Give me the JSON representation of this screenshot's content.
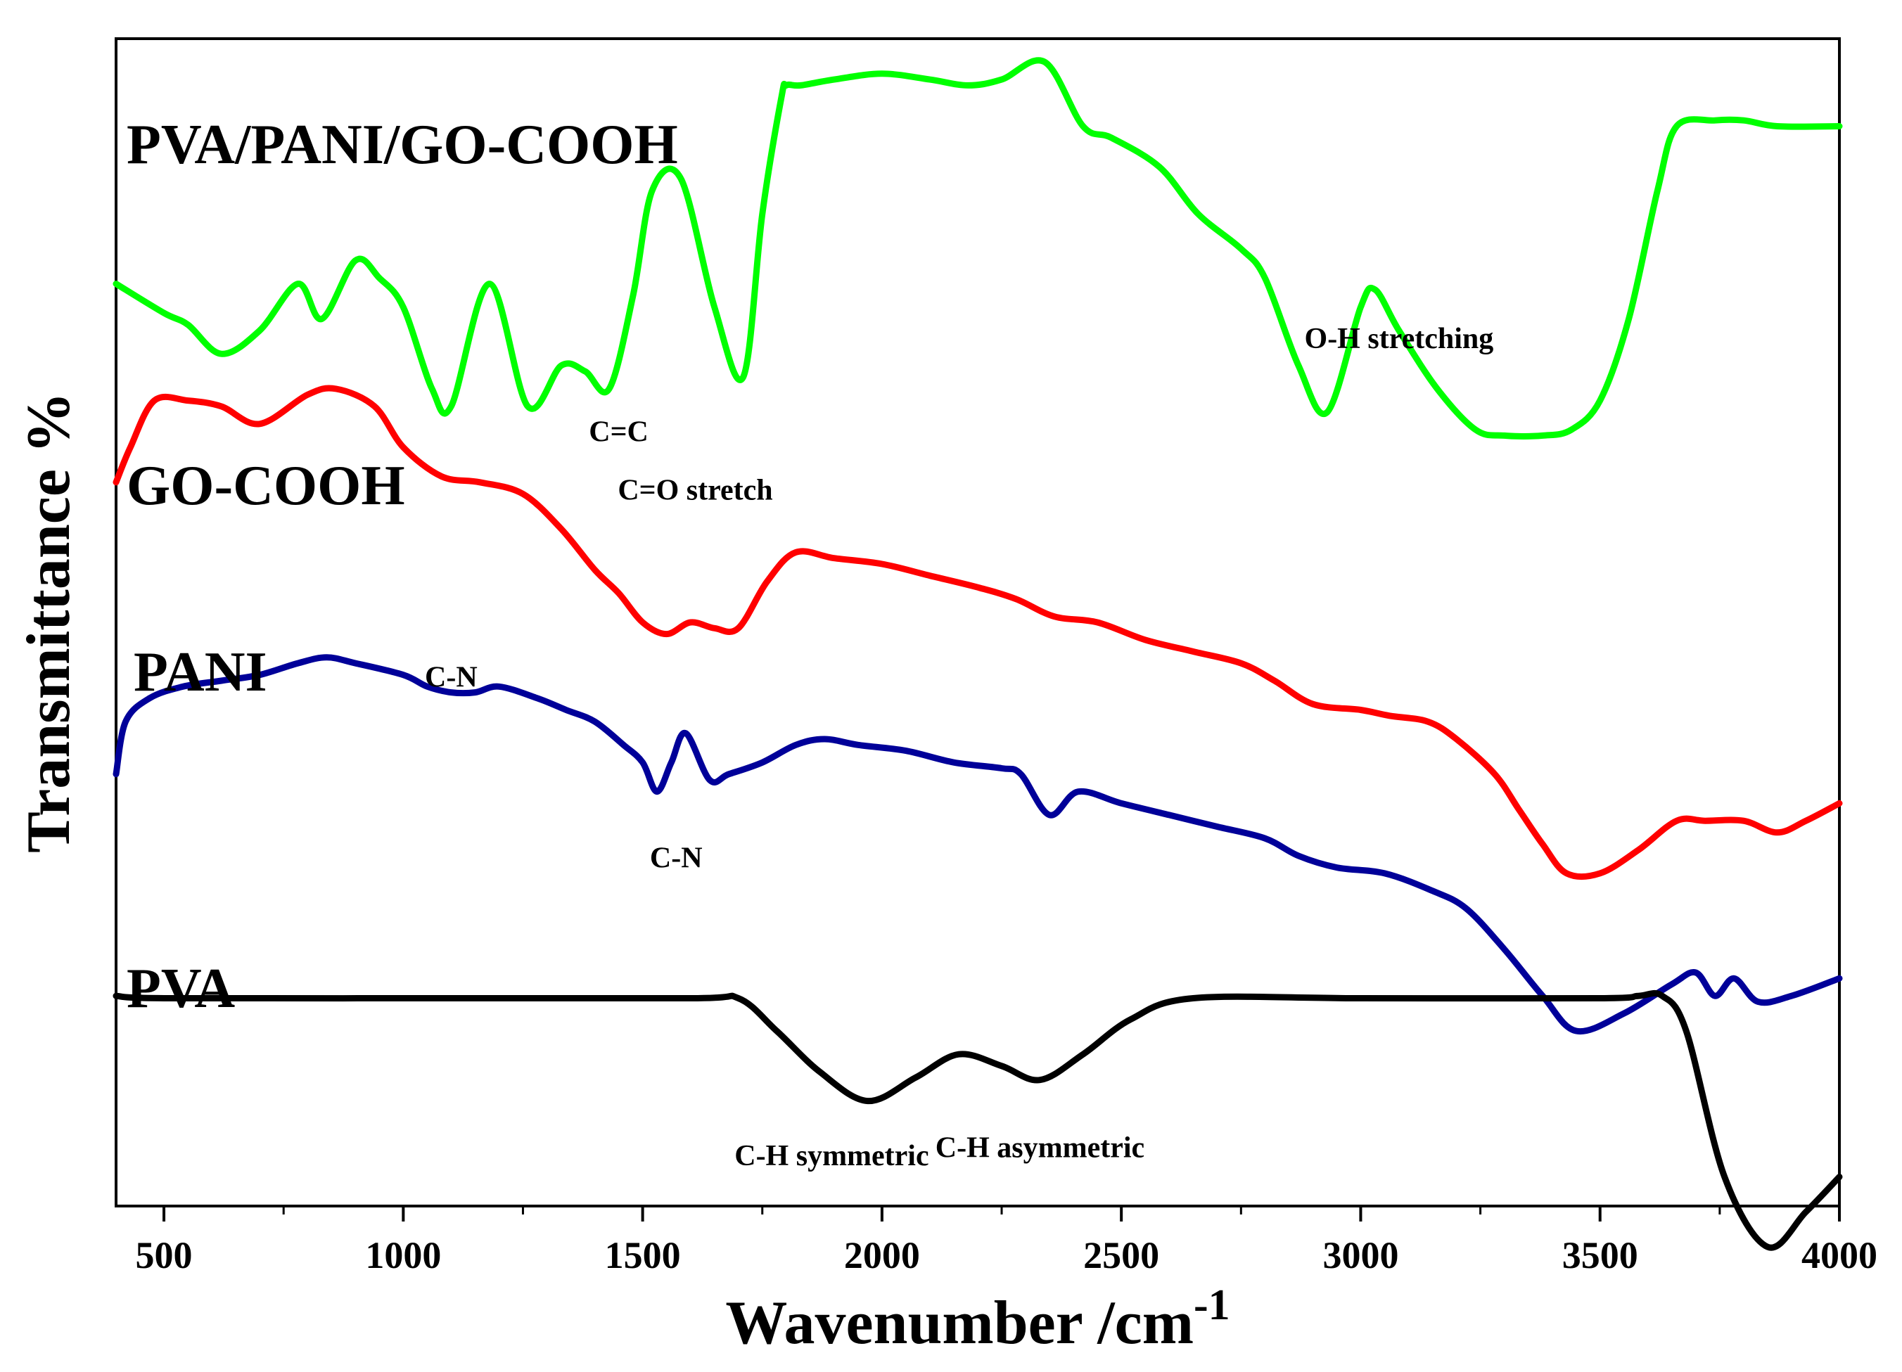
{
  "chart_data": {
    "type": "line",
    "title": "",
    "xlabel": "Wavenumber /cm",
    "xlabel_superscript": "-1",
    "ylabel": "Transmittance %",
    "xlim": [
      400,
      4000
    ],
    "ylim": [
      0,
      100
    ],
    "x_ticks": [
      500,
      1000,
      1500,
      2000,
      2500,
      3000,
      3500,
      4000
    ],
    "y_ticks": [],
    "grid": false,
    "legend": "none",
    "series": [
      {
        "name": "PVA/PANI/GO-COOH",
        "color": "#00ff00",
        "points": [
          [
            400,
            79
          ],
          [
            500,
            76.5
          ],
          [
            550,
            75.5
          ],
          [
            620,
            73
          ],
          [
            700,
            75
          ],
          [
            780,
            79
          ],
          [
            830,
            76
          ],
          [
            900,
            81
          ],
          [
            950,
            79.5
          ],
          [
            1000,
            77
          ],
          [
            1060,
            70
          ],
          [
            1100,
            68.5
          ],
          [
            1180,
            79
          ],
          [
            1260,
            68.5
          ],
          [
            1330,
            72
          ],
          [
            1380,
            71.5
          ],
          [
            1430,
            70
          ],
          [
            1480,
            78
          ],
          [
            1520,
            87
          ],
          [
            1580,
            88
          ],
          [
            1650,
            77
          ],
          [
            1710,
            71
          ],
          [
            1750,
            85
          ],
          [
            1790,
            95
          ],
          [
            1800,
            96
          ],
          [
            1830,
            96
          ],
          [
            1900,
            96.5
          ],
          [
            2000,
            97
          ],
          [
            2100,
            96.5
          ],
          [
            2180,
            96
          ],
          [
            2250,
            96.5
          ],
          [
            2340,
            98
          ],
          [
            2420,
            92.5
          ],
          [
            2480,
            91.5
          ],
          [
            2580,
            89
          ],
          [
            2660,
            85
          ],
          [
            2750,
            82
          ],
          [
            2800,
            79.5
          ],
          [
            2870,
            72
          ],
          [
            2930,
            68
          ],
          [
            3000,
            77
          ],
          [
            3030,
            78.5
          ],
          [
            3080,
            75
          ],
          [
            3160,
            70
          ],
          [
            3240,
            66.5
          ],
          [
            3300,
            66
          ],
          [
            3380,
            66
          ],
          [
            3440,
            66.5
          ],
          [
            3500,
            69
          ],
          [
            3560,
            76
          ],
          [
            3620,
            87
          ],
          [
            3660,
            92.5
          ],
          [
            3740,
            93
          ],
          [
            3800,
            93
          ],
          [
            3870,
            92.5
          ],
          [
            4000,
            92.5
          ]
        ]
      },
      {
        "name": "GO-COOH",
        "color": "#ff0000",
        "points": [
          [
            400,
            62
          ],
          [
            430,
            65
          ],
          [
            480,
            69
          ],
          [
            550,
            69
          ],
          [
            620,
            68.5
          ],
          [
            700,
            67
          ],
          [
            800,
            69.5
          ],
          [
            860,
            70
          ],
          [
            940,
            68.5
          ],
          [
            1000,
            65
          ],
          [
            1080,
            62.5
          ],
          [
            1160,
            62
          ],
          [
            1250,
            61
          ],
          [
            1330,
            58
          ],
          [
            1400,
            54.5
          ],
          [
            1450,
            52.5
          ],
          [
            1500,
            50
          ],
          [
            1550,
            49
          ],
          [
            1600,
            50
          ],
          [
            1650,
            49.5
          ],
          [
            1700,
            49.5
          ],
          [
            1760,
            53.5
          ],
          [
            1820,
            56
          ],
          [
            1900,
            55.5
          ],
          [
            2000,
            55
          ],
          [
            2100,
            54
          ],
          [
            2200,
            53
          ],
          [
            2280,
            52
          ],
          [
            2360,
            50.5
          ],
          [
            2450,
            50
          ],
          [
            2550,
            48.5
          ],
          [
            2650,
            47.5
          ],
          [
            2750,
            46.5
          ],
          [
            2820,
            45
          ],
          [
            2900,
            43
          ],
          [
            3000,
            42.5
          ],
          [
            3060,
            42
          ],
          [
            3140,
            41.5
          ],
          [
            3200,
            40
          ],
          [
            3280,
            37
          ],
          [
            3330,
            34
          ],
          [
            3380,
            31
          ],
          [
            3430,
            28.5
          ],
          [
            3500,
            28.5
          ],
          [
            3580,
            30.5
          ],
          [
            3660,
            33
          ],
          [
            3720,
            33
          ],
          [
            3800,
            33
          ],
          [
            3870,
            32
          ],
          [
            3930,
            33
          ],
          [
            4000,
            34.5
          ]
        ]
      },
      {
        "name": "PANI",
        "color": "#000099",
        "points": [
          [
            400,
            37
          ],
          [
            420,
            41.5
          ],
          [
            470,
            43.5
          ],
          [
            540,
            44.5
          ],
          [
            620,
            45
          ],
          [
            700,
            45.5
          ],
          [
            780,
            46.5
          ],
          [
            840,
            47
          ],
          [
            900,
            46.5
          ],
          [
            1000,
            45.5
          ],
          [
            1050,
            44.5
          ],
          [
            1100,
            44
          ],
          [
            1150,
            44
          ],
          [
            1200,
            44.5
          ],
          [
            1280,
            43.5
          ],
          [
            1340,
            42.5
          ],
          [
            1400,
            41.5
          ],
          [
            1460,
            39.5
          ],
          [
            1500,
            38
          ],
          [
            1530,
            35.5
          ],
          [
            1560,
            38
          ],
          [
            1590,
            40.5
          ],
          [
            1640,
            36.5
          ],
          [
            1680,
            37
          ],
          [
            1750,
            38
          ],
          [
            1820,
            39.5
          ],
          [
            1880,
            40
          ],
          [
            1950,
            39.5
          ],
          [
            2050,
            39
          ],
          [
            2150,
            38
          ],
          [
            2250,
            37.5
          ],
          [
            2290,
            37
          ],
          [
            2350,
            33.5
          ],
          [
            2410,
            35.5
          ],
          [
            2500,
            34.5
          ],
          [
            2600,
            33.5
          ],
          [
            2700,
            32.5
          ],
          [
            2800,
            31.5
          ],
          [
            2870,
            30
          ],
          [
            2950,
            29
          ],
          [
            3050,
            28.5
          ],
          [
            3150,
            27
          ],
          [
            3220,
            25.5
          ],
          [
            3300,
            22
          ],
          [
            3380,
            18
          ],
          [
            3450,
            15
          ],
          [
            3550,
            16.5
          ],
          [
            3650,
            19
          ],
          [
            3700,
            20
          ],
          [
            3740,
            18
          ],
          [
            3780,
            19.5
          ],
          [
            3830,
            17.5
          ],
          [
            3900,
            18
          ],
          [
            4000,
            19.5
          ]
        ]
      },
      {
        "name": "PVA",
        "color": "#000000",
        "points": [
          [
            400,
            18
          ],
          [
            500,
            17.8
          ],
          [
            1000,
            17.8
          ],
          [
            1600,
            17.8
          ],
          [
            1700,
            17.8
          ],
          [
            1780,
            15
          ],
          [
            1870,
            11.5
          ],
          [
            1970,
            9
          ],
          [
            2070,
            11
          ],
          [
            2160,
            13
          ],
          [
            2250,
            12
          ],
          [
            2330,
            10.8
          ],
          [
            2420,
            13
          ],
          [
            2520,
            16
          ],
          [
            2650,
            17.8
          ],
          [
            3000,
            17.8
          ],
          [
            3500,
            17.8
          ],
          [
            3580,
            18
          ],
          [
            3630,
            18
          ],
          [
            3680,
            15
          ],
          [
            3760,
            2.5
          ],
          [
            3850,
            -3.5
          ],
          [
            3930,
            -0.5
          ],
          [
            4000,
            2.5
          ]
        ]
      }
    ],
    "annotations": [
      {
        "text": "C=C",
        "x": 1450,
        "y": 65.5
      },
      {
        "text": "C=O stretch",
        "x": 1610,
        "y": 60.5
      },
      {
        "text": "C-N",
        "x": 1100,
        "y": 44.5
      },
      {
        "text": "C-N",
        "x": 1570,
        "y": 29
      },
      {
        "text": "C-H symmetric",
        "x": 1895,
        "y": 3.5
      },
      {
        "text": "C-H asymmetric",
        "x": 2330,
        "y": 4.2
      },
      {
        "text": "O-H stretching",
        "x": 3080,
        "y": 73.5
      }
    ]
  }
}
